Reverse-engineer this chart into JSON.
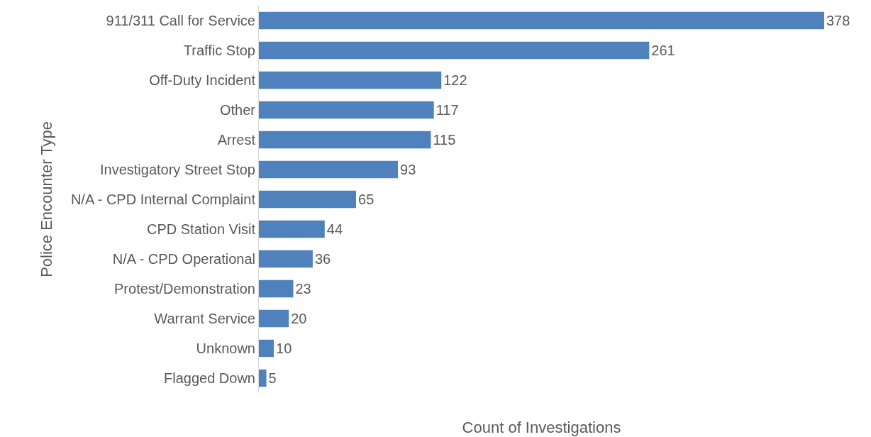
{
  "chart_data": {
    "type": "bar",
    "orientation": "horizontal",
    "xlabel": "Count of Investigations",
    "ylabel": "Police Encounter Type",
    "categories": [
      "911/311 Call for Service",
      "Traffic Stop",
      "Off-Duty Incident",
      "Other",
      "Arrest",
      "Investigatory Street Stop",
      "N/A - CPD Internal Complaint",
      "CPD Station Visit",
      "N/A - CPD Operational",
      "Protest/Demonstration",
      "Warrant Service",
      "Unknown",
      "Flagged Down"
    ],
    "values": [
      378,
      261,
      122,
      117,
      115,
      93,
      65,
      44,
      36,
      23,
      20,
      10,
      5
    ],
    "color": "#4f81bd",
    "data_labels": true
  }
}
